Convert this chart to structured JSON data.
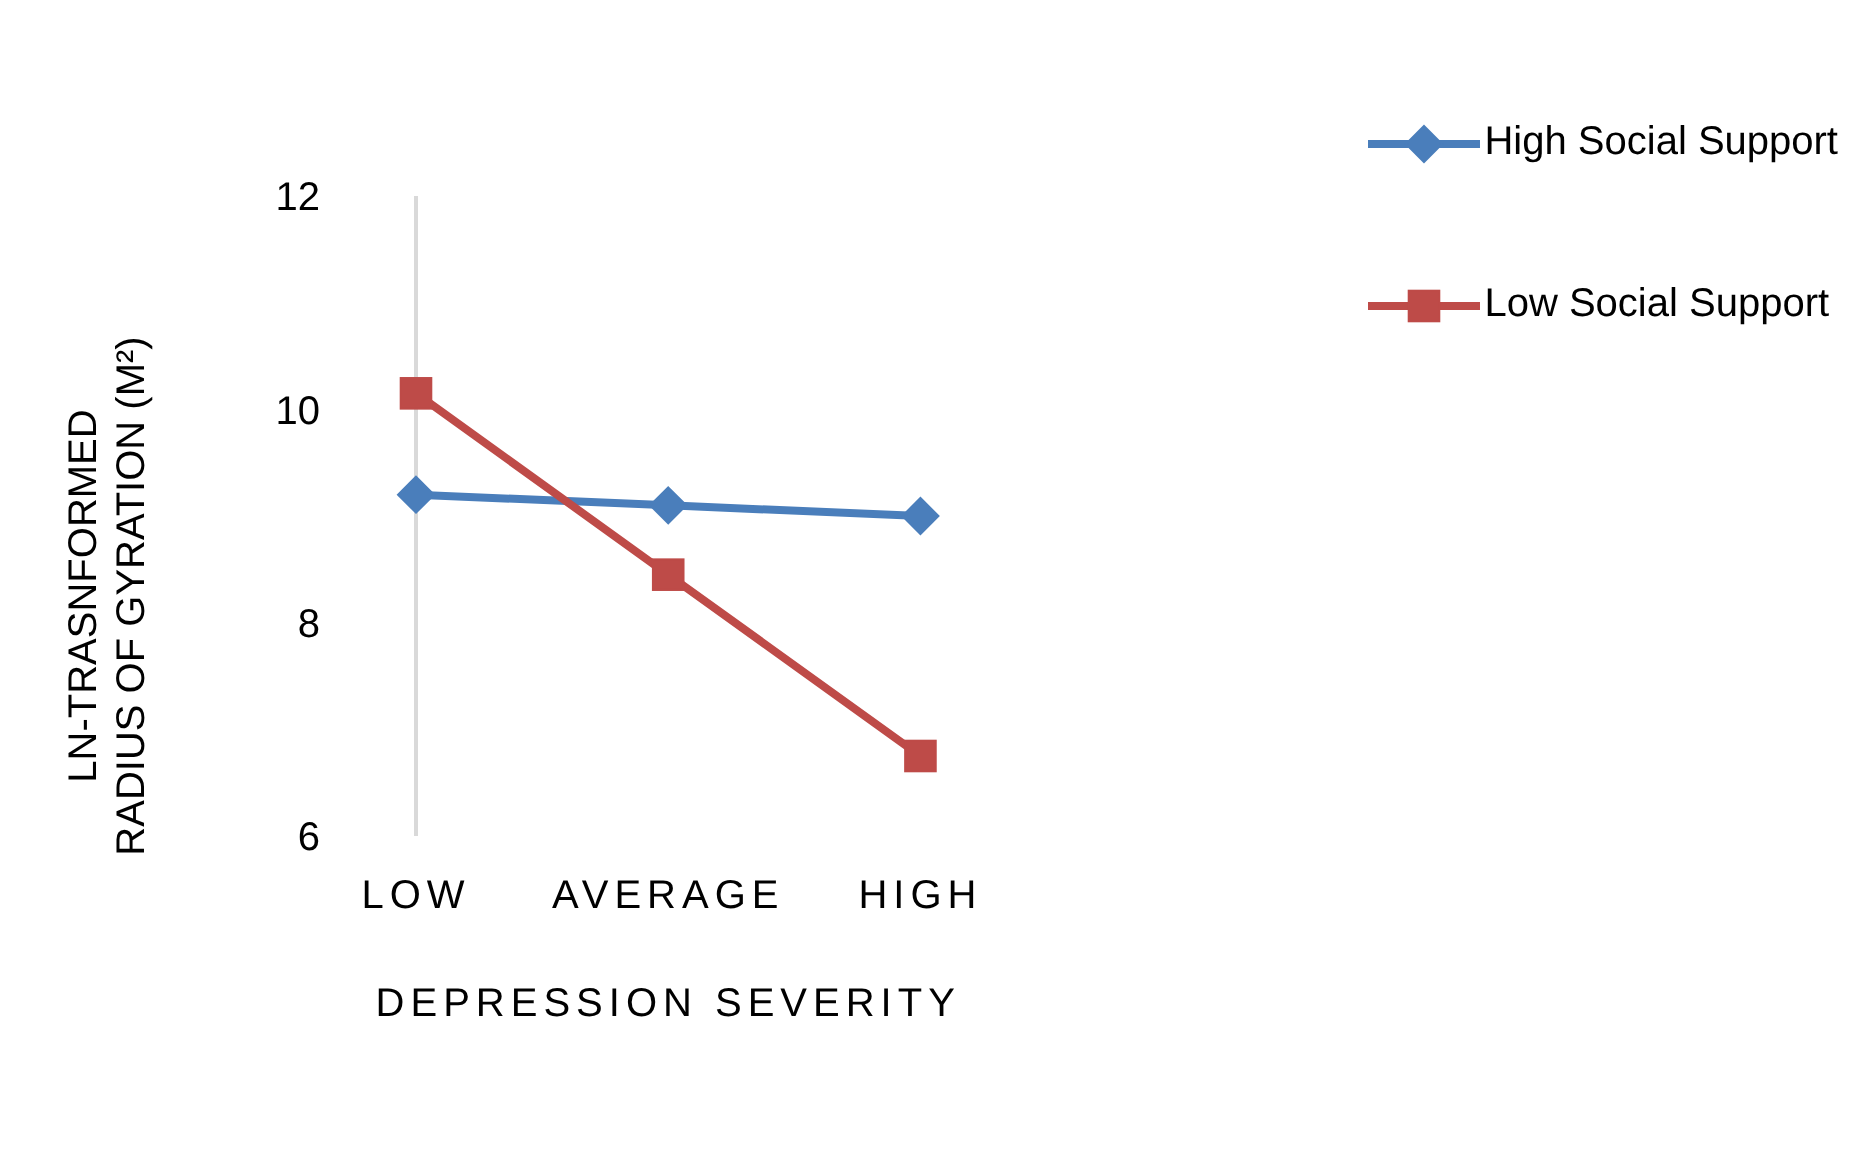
{
  "chart_data": {
    "type": "line",
    "xlabel": "DEPRESSION SEVERITY",
    "ylabel": "LN-TRASNFORMED RADIUS OF GYRATION (M²)",
    "categories": [
      "LOW",
      "AVERAGE",
      "HIGH"
    ],
    "series": [
      {
        "name": "High Social Support",
        "color": "#4a7ebb",
        "marker": "diamond",
        "values": [
          9.2,
          9.1,
          9.0
        ]
      },
      {
        "name": "Low Social Support",
        "color": "#be4b48",
        "marker": "square",
        "values": [
          10.15,
          8.45,
          6.75
        ]
      }
    ],
    "ylim": [
      6,
      12
    ],
    "yticks": [
      6,
      8,
      10,
      12
    ],
    "grid": false,
    "legend": "top right"
  }
}
